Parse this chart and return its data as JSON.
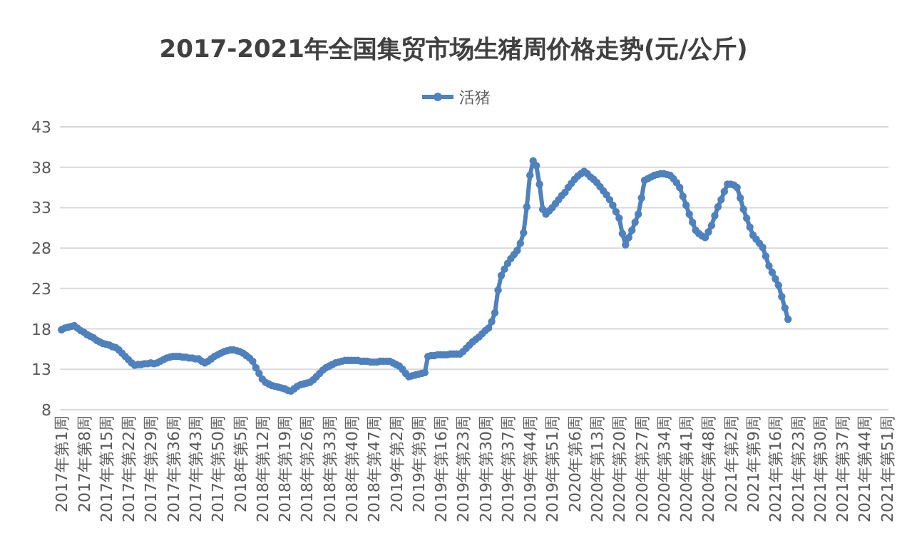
{
  "chart_data": {
    "type": "line",
    "title": "2017-2021年全国集贸市场生猪周价格走势(元/公斤)",
    "categories": [
      "2017年第1周",
      null,
      null,
      null,
      null,
      null,
      null,
      "2017年第8周",
      null,
      null,
      null,
      null,
      null,
      null,
      "2017年第15周",
      null,
      null,
      null,
      null,
      null,
      null,
      "2017年第22周",
      null,
      null,
      null,
      null,
      null,
      null,
      "2017年第29周",
      null,
      null,
      null,
      null,
      null,
      null,
      "2017年第36周",
      null,
      null,
      null,
      null,
      null,
      null,
      "2017年第43周",
      null,
      null,
      null,
      null,
      null,
      null,
      "2017年第50周",
      null,
      null,
      null,
      null,
      null,
      null,
      "2018年第5周",
      null,
      null,
      null,
      null,
      null,
      null,
      "2018年第12周",
      null,
      null,
      null,
      null,
      null,
      null,
      "2018年第19周",
      null,
      null,
      null,
      null,
      null,
      null,
      "2018年第26周",
      null,
      null,
      null,
      null,
      null,
      null,
      "2018年第33周",
      null,
      null,
      null,
      null,
      null,
      null,
      "2018年第40周",
      null,
      null,
      null,
      null,
      null,
      null,
      "2018年第47周",
      null,
      null,
      null,
      null,
      null,
      null,
      "2019年第2周",
      null,
      null,
      null,
      null,
      null,
      null,
      "2019年第9周",
      null,
      null,
      null,
      null,
      null,
      null,
      "2019年第16周",
      null,
      null,
      null,
      null,
      null,
      null,
      "2019年第23周",
      null,
      null,
      null,
      null,
      null,
      null,
      "2019年第30周",
      null,
      null,
      null,
      null,
      null,
      null,
      "2019年第37周",
      null,
      null,
      null,
      null,
      null,
      null,
      "2019年第44周",
      null,
      null,
      null,
      null,
      null,
      null,
      "2019年第51周",
      null,
      null,
      null,
      null,
      null,
      null,
      "2020年第6周",
      null,
      null,
      null,
      null,
      null,
      null,
      "2020年第13周",
      null,
      null,
      null,
      null,
      null,
      null,
      "2020年第20周",
      null,
      null,
      null,
      null,
      null,
      null,
      "2020年第27周",
      null,
      null,
      null,
      null,
      null,
      null,
      "2020年第34周",
      null,
      null,
      null,
      null,
      null,
      null,
      "2020年第41周",
      null,
      null,
      null,
      null,
      null,
      null,
      "2020年第48周",
      null,
      null,
      null,
      null,
      null,
      null,
      "2021年第2周",
      null,
      null,
      null,
      null,
      null,
      null,
      "2021年第9周",
      null,
      null,
      null,
      null,
      null,
      null,
      "2021年第16周",
      null,
      null,
      null,
      null,
      null,
      null,
      "2021年第23周",
      null,
      null,
      null,
      null,
      null,
      null,
      "2021年第30周",
      null,
      null,
      null,
      null,
      null,
      null,
      "2021年第37周",
      null,
      null,
      null,
      null,
      null,
      null,
      "2021年第44周",
      null,
      null,
      null,
      null,
      null,
      null,
      "2021年第51周"
    ],
    "series": [
      {
        "name": "活猪",
        "color": "#4f81bd",
        "values": [
          17.9,
          18.1,
          18.2,
          18.3,
          18.4,
          18.1,
          17.8,
          17.6,
          17.3,
          17.1,
          16.9,
          16.6,
          16.4,
          16.2,
          16.1,
          16.0,
          15.8,
          15.7,
          15.4,
          15.0,
          14.6,
          14.2,
          13.8,
          13.5,
          13.6,
          13.6,
          13.7,
          13.7,
          13.8,
          13.7,
          13.8,
          14.0,
          14.2,
          14.4,
          14.5,
          14.6,
          14.6,
          14.6,
          14.5,
          14.5,
          14.4,
          14.4,
          14.3,
          14.3,
          14.0,
          13.8,
          14.0,
          14.3,
          14.6,
          14.8,
          15.0,
          15.2,
          15.3,
          15.4,
          15.4,
          15.3,
          15.2,
          15.0,
          14.7,
          14.4,
          14.0,
          13.2,
          12.5,
          11.8,
          11.4,
          11.2,
          11.0,
          10.9,
          10.8,
          10.7,
          10.6,
          10.4,
          10.3,
          10.6,
          10.9,
          11.1,
          11.2,
          11.3,
          11.4,
          11.7,
          12.1,
          12.5,
          12.9,
          13.2,
          13.4,
          13.6,
          13.8,
          13.9,
          14.0,
          14.1,
          14.1,
          14.1,
          14.1,
          14.1,
          14.0,
          14.0,
          14.0,
          13.9,
          13.9,
          13.9,
          14.0,
          14.0,
          14.0,
          14.0,
          13.8,
          13.6,
          13.4,
          13.0,
          12.5,
          12.1,
          12.2,
          12.3,
          12.4,
          12.5,
          12.6,
          14.6,
          14.7,
          14.7,
          14.8,
          14.8,
          14.8,
          14.8,
          14.9,
          14.9,
          14.9,
          14.9,
          15.2,
          15.6,
          16.0,
          16.4,
          16.7,
          17.0,
          17.4,
          17.8,
          18.1,
          18.9,
          20.0,
          22.8,
          24.6,
          25.4,
          26.1,
          26.7,
          27.2,
          27.7,
          28.6,
          29.9,
          33.1,
          37.0,
          38.8,
          38.2,
          35.9,
          32.8,
          32.2,
          32.6,
          33.0,
          33.5,
          34.0,
          34.5,
          34.9,
          35.5,
          36.0,
          36.5,
          36.9,
          37.2,
          37.5,
          37.2,
          36.8,
          36.5,
          36.1,
          35.6,
          35.1,
          34.6,
          34.0,
          33.3,
          32.5,
          31.7,
          29.8,
          28.4,
          29.3,
          30.2,
          31.2,
          32.2,
          34.2,
          36.4,
          36.6,
          36.8,
          37.0,
          37.1,
          37.2,
          37.2,
          37.1,
          37.0,
          36.6,
          36.1,
          35.5,
          34.4,
          33.3,
          32.2,
          31.2,
          30.2,
          29.8,
          29.5,
          29.3,
          30.0,
          30.8,
          32.0,
          33.1,
          34.0,
          35.0,
          35.9,
          35.9,
          35.8,
          35.5,
          34.2,
          32.8,
          31.7,
          30.6,
          29.6,
          29.1,
          28.6,
          28.1,
          27.0,
          25.8,
          25.0,
          24.2,
          23.4,
          22.0,
          20.6,
          19.2,
          null,
          null,
          null,
          null,
          null,
          null,
          null,
          null,
          null,
          null,
          null,
          null,
          null,
          null,
          null,
          null,
          null,
          null,
          null,
          null,
          null,
          null,
          null,
          null,
          null,
          null,
          null,
          null,
          null,
          null,
          null
        ]
      }
    ],
    "ylim": [
      8,
      43
    ],
    "yticks": [
      8,
      13,
      18,
      23,
      28,
      33,
      38,
      43
    ],
    "grid": "y",
    "legend": "top",
    "marker": "circle",
    "line_style": "solid"
  }
}
